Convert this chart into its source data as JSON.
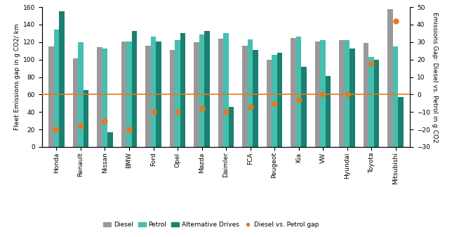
{
  "categories": [
    "Honda",
    "Renault",
    "Nissan",
    "BMW",
    "Ford",
    "Opel",
    "Mazda",
    "Daimler",
    "FCA",
    "Peugeot",
    "Kia",
    "VW",
    "Hyundai",
    "Toyota",
    "Mitsubishi"
  ],
  "diesel": [
    115,
    101,
    114,
    121,
    116,
    111,
    120,
    124,
    116,
    100,
    125,
    121,
    122,
    119,
    158
  ],
  "petrol": [
    134,
    120,
    113,
    121,
    126,
    122,
    129,
    130,
    123,
    105,
    126,
    122,
    122,
    103,
    115
  ],
  "alt_drives": [
    155,
    65,
    17,
    133,
    121,
    130,
    133,
    46,
    111,
    108,
    92,
    81,
    113,
    100,
    57
  ],
  "diesel_vs_petrol": [
    -20,
    -18,
    -15,
    -20,
    -10,
    -10,
    -8,
    -10,
    -7,
    -5,
    -3,
    0,
    0,
    18,
    42
  ],
  "bar_color_diesel": "#999999",
  "bar_color_petrol": "#45bfb0",
  "bar_color_alt": "#1a8070",
  "dot_color": "#e87722",
  "line_color": "#e87722",
  "ylabel_left": "Fleet Emissions gap in g CO2/ km",
  "ylabel_right": "Emissions Gap: Diesel vs. Petrol in g CO2",
  "ylim_left": [
    0,
    160
  ],
  "ylim_right": [
    -30,
    50
  ],
  "yticks_left": [
    0,
    20,
    40,
    60,
    80,
    100,
    120,
    140,
    160
  ],
  "yticks_right": [
    -30,
    -20,
    -10,
    0,
    10,
    20,
    30,
    40,
    50
  ],
  "legend_labels": [
    "Diesel",
    "Petrol",
    "Alternative Drives",
    "Diesel vs. Petrol gap"
  ]
}
